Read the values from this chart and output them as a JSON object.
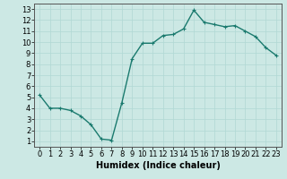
{
  "x": [
    0,
    1,
    2,
    3,
    4,
    5,
    6,
    7,
    8,
    9,
    10,
    11,
    12,
    13,
    14,
    15,
    16,
    17,
    18,
    19,
    20,
    21,
    22,
    23
  ],
  "y": [
    5.2,
    4.0,
    4.0,
    3.8,
    3.3,
    2.5,
    1.2,
    1.1,
    4.5,
    8.5,
    9.9,
    9.9,
    10.6,
    10.7,
    11.2,
    12.9,
    11.8,
    11.6,
    11.4,
    11.5,
    11.0,
    10.5,
    9.5,
    8.8
  ],
  "xlabel": "Humidex (Indice chaleur)",
  "xlim": [
    -0.5,
    23.5
  ],
  "ylim": [
    0.5,
    13.5
  ],
  "yticks": [
    1,
    2,
    3,
    4,
    5,
    6,
    7,
    8,
    9,
    10,
    11,
    12,
    13
  ],
  "xticks": [
    0,
    1,
    2,
    3,
    4,
    5,
    6,
    7,
    8,
    9,
    10,
    11,
    12,
    13,
    14,
    15,
    16,
    17,
    18,
    19,
    20,
    21,
    22,
    23
  ],
  "line_color": "#1a7a6e",
  "marker_color": "#1a7a6e",
  "bg_color": "#cce8e4",
  "grid_color": "#b0d8d4",
  "xlabel_fontsize": 7,
  "tick_fontsize": 6,
  "line_width": 1.0,
  "marker_size": 2.5
}
